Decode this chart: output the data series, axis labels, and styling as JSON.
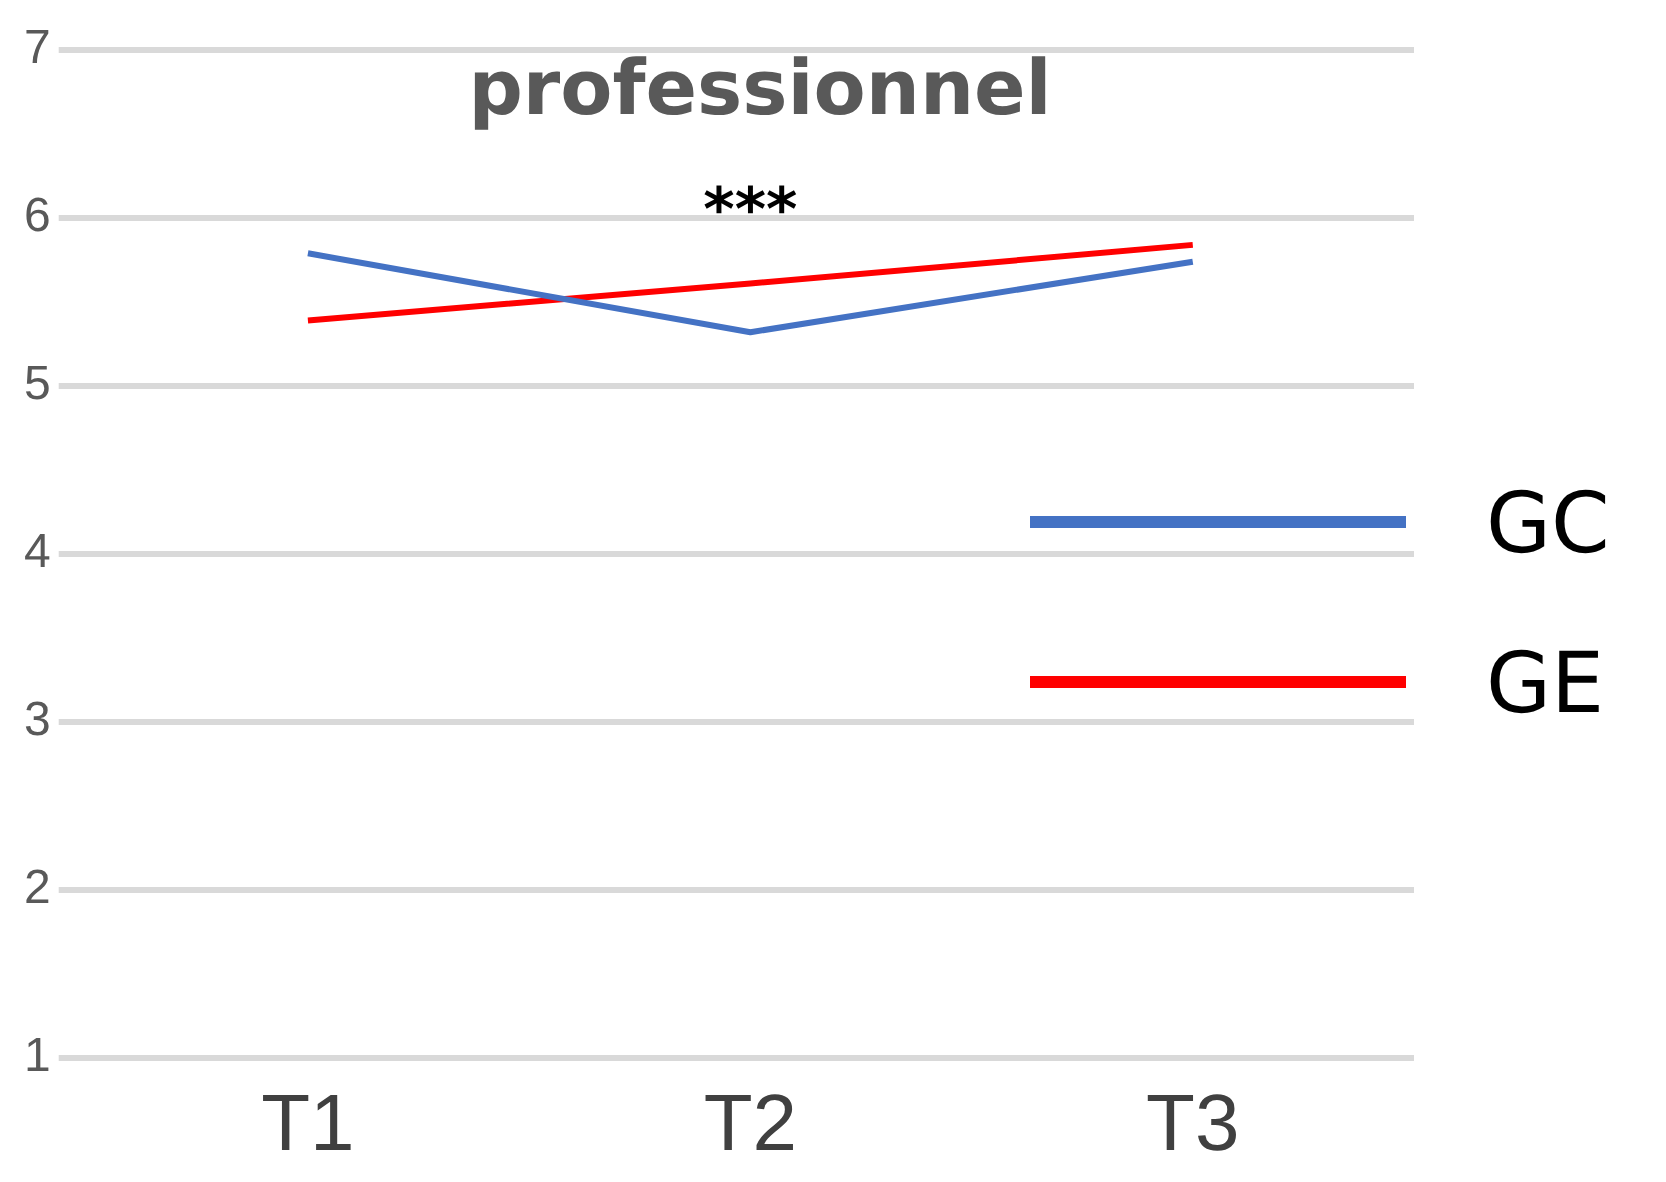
{
  "chart_data": {
    "type": "line",
    "title": "professionnel",
    "categories": [
      "T1",
      "T2",
      "T3"
    ],
    "series": [
      {
        "name": "GC",
        "color": "#4472c4",
        "values": [
          5.79,
          5.32,
          5.74
        ]
      },
      {
        "name": "GE",
        "color": "#ff0000",
        "values": [
          5.39,
          5.61,
          5.84
        ]
      }
    ],
    "ylim": [
      1,
      7
    ],
    "yticks": [
      1,
      2,
      3,
      4,
      5,
      6,
      7
    ],
    "grid": "y",
    "legend": "right",
    "marker": "none",
    "annotations": [
      "***"
    ]
  }
}
